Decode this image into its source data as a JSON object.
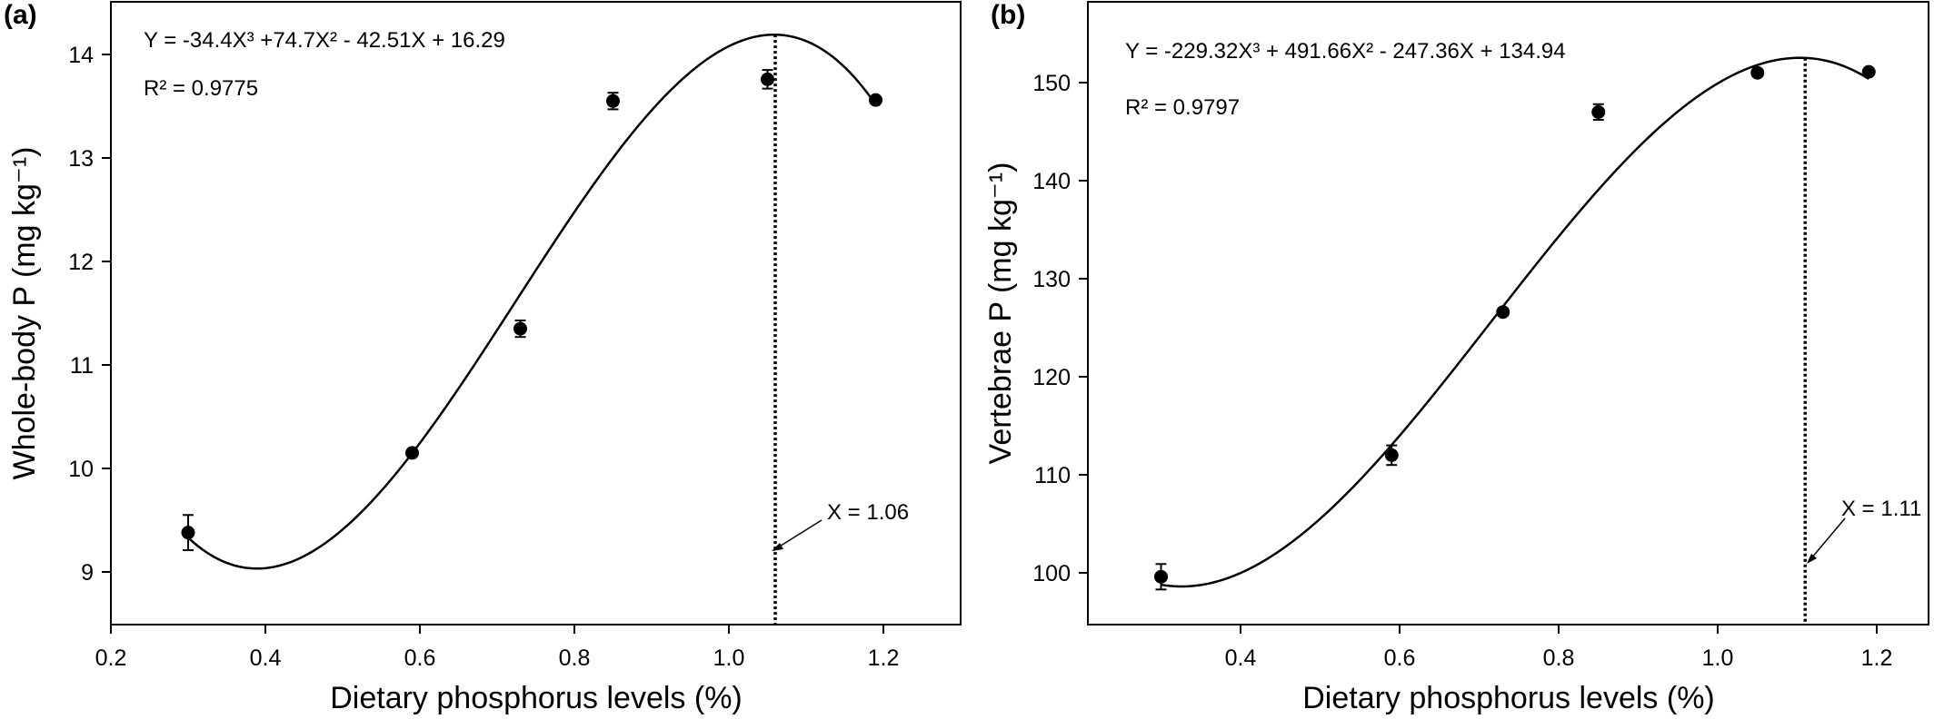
{
  "chart_data": [
    {
      "type": "scatter",
      "panel_label": "(a)",
      "title": "",
      "xlabel": "Dietary phosphorus levels (%)",
      "ylabel": "Whole-body P (mg kg⁻¹)",
      "xlim": [
        0.2,
        1.3
      ],
      "ylim": [
        8.5,
        14.5
      ],
      "xticks": [
        0.2,
        0.4,
        0.6,
        0.8,
        1.0,
        1.2
      ],
      "xtick_labels": [
        "0.2",
        "0.4",
        "0.6",
        "0.8",
        "1.0",
        "1.2"
      ],
      "yticks": [
        9,
        10,
        11,
        12,
        13,
        14
      ],
      "ytick_labels": [
        "9",
        "10",
        "11",
        "12",
        "13",
        "14"
      ],
      "grid": false,
      "x": [
        0.3,
        0.59,
        0.73,
        0.85,
        1.05,
        1.19
      ],
      "y": [
        9.38,
        10.15,
        11.35,
        13.55,
        13.76,
        13.56
      ],
      "y_err": [
        0.17,
        0.0,
        0.08,
        0.08,
        0.09,
        0.0
      ],
      "fit": {
        "a3": -34.4,
        "a2": 74.7,
        "a1": -42.51,
        "a0": 16.29,
        "x_start": 0.3,
        "x_end": 1.19
      },
      "equation_text": "Y = -34.4X³ +74.7X² - 42.51X + 16.29",
      "r2_text": "R² = 0.9775",
      "optimum_x": 1.06,
      "optimum_text": "X = 1.06"
    },
    {
      "type": "scatter",
      "panel_label": "(b)",
      "title": "",
      "xlabel": "Dietary phosphorus levels (%)",
      "ylabel": "Vertebrae P (mg kg⁻¹)",
      "xlim": [
        0.2,
        1.3
      ],
      "ylim": [
        95,
        155
      ],
      "xticks": [
        0.4,
        0.6,
        0.8,
        1.0,
        1.2
      ],
      "xtick_labels": [
        "0.4",
        "0.6",
        "0.8",
        "1.0",
        "1.2"
      ],
      "yticks": [
        100,
        110,
        120,
        130,
        140,
        150
      ],
      "ytick_labels": [
        "100",
        "110",
        "120",
        "130",
        "140",
        "150"
      ],
      "grid": false,
      "x": [
        0.3,
        0.59,
        0.73,
        0.85,
        1.05,
        1.19
      ],
      "y": [
        99.6,
        112.0,
        126.6,
        147.0,
        151.0,
        151.1
      ],
      "y_err": [
        1.3,
        1.0,
        0.0,
        0.8,
        0.0,
        0.0
      ],
      "fit": {
        "a3": -229.32,
        "a2": 491.66,
        "a1": -247.36,
        "a0": 134.94,
        "x_start": 0.3,
        "x_end": 1.19
      },
      "equation_text": "Y = -229.32X³ + 491.66X² - 247.36X + 134.94",
      "r2_text": "R² = 0.9797",
      "optimum_x": 1.11,
      "optimum_text": "X = 1.11"
    }
  ]
}
